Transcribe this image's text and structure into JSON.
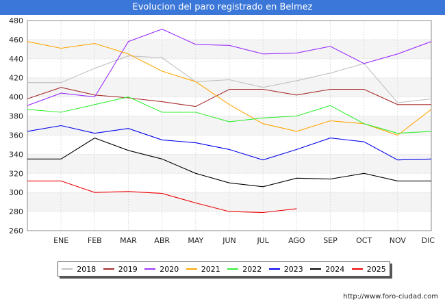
{
  "title": "Evolucion del paro registrado en Belmez",
  "source": "http://www.foro-ciudad.com",
  "chart_data": {
    "type": "line",
    "title": "Evolucion del paro registrado en Belmez",
    "x": [
      "",
      "ENE",
      "FEB",
      "MAR",
      "ABR",
      "MAY",
      "JUN",
      "JUL",
      "AGO",
      "SEP",
      "OCT",
      "NOV",
      "DIC"
    ],
    "ylim": [
      260,
      480
    ],
    "yticks": [
      260,
      280,
      300,
      320,
      340,
      360,
      380,
      400,
      420,
      440,
      460,
      480
    ],
    "grid": true,
    "legend_position": "bottom",
    "series": [
      {
        "name": "2018",
        "color": "#c0c0c0",
        "values": [
          415,
          415,
          430,
          443,
          441,
          416,
          418,
          410,
          417,
          425,
          435,
          394,
          398
        ]
      },
      {
        "name": "2019",
        "color": "#a52a2a",
        "values": [
          398,
          410,
          402,
          399,
          395,
          390,
          408,
          408,
          402,
          408,
          408,
          392,
          392
        ]
      },
      {
        "name": "2020",
        "color": "#9b30ff",
        "values": [
          391,
          404,
          400,
          458,
          471,
          455,
          454,
          445,
          446,
          453,
          435,
          445,
          458
        ]
      },
      {
        "name": "2021",
        "color": "#ffa500",
        "values": [
          458,
          451,
          456,
          445,
          427,
          416,
          392,
          372,
          364,
          375,
          372,
          360,
          387
        ]
      },
      {
        "name": "2022",
        "color": "#33ee33",
        "values": [
          387,
          384,
          392,
          400,
          384,
          384,
          374,
          378,
          380,
          391,
          372,
          362,
          364
        ]
      },
      {
        "name": "2023",
        "color": "#0000ee",
        "values": [
          364,
          370,
          362,
          367,
          355,
          352,
          345,
          334,
          345,
          357,
          353,
          334,
          335
        ]
      },
      {
        "name": "2024",
        "color": "#000000",
        "values": [
          335,
          335,
          357,
          344,
          335,
          320,
          310,
          306,
          315,
          314,
          320,
          312,
          312
        ]
      },
      {
        "name": "2025",
        "color": "#ee0000",
        "values": [
          312,
          312,
          300,
          301,
          299,
          289,
          280,
          279,
          283,
          null,
          null,
          null,
          null
        ]
      }
    ]
  }
}
